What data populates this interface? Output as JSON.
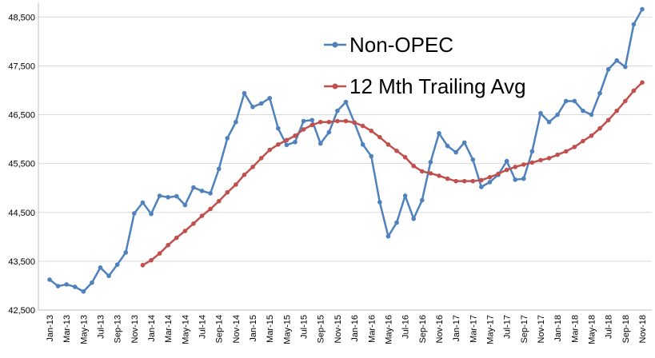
{
  "chart_data": {
    "type": "line",
    "categories": [
      "Jan-13",
      null,
      "Mar-13",
      null,
      "May-13",
      null,
      "Jul-13",
      null,
      "Sep-13",
      null,
      "Nov-13",
      null,
      "Jan-14",
      null,
      "Mar-14",
      null,
      "May-14",
      null,
      "Jul-14",
      null,
      "Sep-14",
      null,
      "Nov-14",
      null,
      "Jan-15",
      null,
      "Mar-15",
      null,
      "May-15",
      null,
      "Jul-15",
      null,
      "Sep-15",
      null,
      "Nov-15",
      null,
      "Jan-16",
      null,
      "Mar-16",
      null,
      "May-16",
      null,
      "Jul-16",
      null,
      "Sep-16",
      null,
      "Nov-16",
      null,
      "Jan-17",
      null,
      "Mar-17",
      null,
      "May-17",
      null,
      "Jul-17",
      null,
      "Sep-17",
      null,
      "Nov-17",
      null,
      "Jan-18",
      null,
      "Mar-18",
      null,
      "May-18",
      null,
      "Jul-18",
      null,
      "Sep-18",
      null,
      "Nov-18"
    ],
    "series": [
      {
        "name": "Non-OPEC",
        "color": "#4f81bd",
        "values": [
          43123,
          42990,
          43025,
          42975,
          42880,
          43060,
          43370,
          43200,
          43430,
          43680,
          44480,
          44700,
          44470,
          44840,
          44810,
          44830,
          44650,
          45010,
          44940,
          44890,
          45390,
          46020,
          46350,
          46940,
          46660,
          46730,
          46840,
          46220,
          45880,
          45940,
          46370,
          46390,
          45910,
          46140,
          46580,
          46760,
          46340,
          45890,
          45650,
          44710,
          44010,
          44290,
          44840,
          44370,
          44750,
          45530,
          46120,
          45860,
          45730,
          45930,
          45580,
          45020,
          45120,
          45270,
          45550,
          45170,
          45190,
          45750,
          46530,
          46350,
          46500,
          46780,
          46780,
          46580,
          46500,
          46940,
          47430,
          47610,
          47480,
          48350,
          48660
        ]
      },
      {
        "name": "12 Mth Trailing Avg",
        "color": "#c0504d",
        "values": [
          null,
          null,
          null,
          null,
          null,
          null,
          null,
          null,
          null,
          null,
          null,
          43420,
          43520,
          43660,
          43830,
          43980,
          44120,
          44270,
          44430,
          44570,
          44730,
          44910,
          45070,
          45270,
          45430,
          45610,
          45780,
          45890,
          45980,
          46070,
          46200,
          46290,
          46350,
          46350,
          46370,
          46370,
          46340,
          46270,
          46170,
          46040,
          45890,
          45760,
          45630,
          45450,
          45340,
          45300,
          45250,
          45190,
          45140,
          45140,
          45140,
          45160,
          45220,
          45290,
          45370,
          45430,
          45480,
          45520,
          45570,
          45610,
          45680,
          45750,
          45840,
          45960,
          46070,
          46220,
          46390,
          46580,
          46780,
          46990,
          47160
        ]
      }
    ],
    "ylim": [
      42500,
      48800
    ],
    "yticks": [
      {
        "value": 42500,
        "label": "42,500"
      },
      {
        "value": 43500,
        "label": "43,500"
      },
      {
        "value": 44500,
        "label": "44,500"
      },
      {
        "value": 45500,
        "label": "45,500"
      },
      {
        "value": 46500,
        "label": "46,500"
      },
      {
        "value": 47500,
        "label": "47,500"
      },
      {
        "value": 48500,
        "label": "48,500"
      }
    ],
    "grid": true,
    "legend": "top-right"
  }
}
